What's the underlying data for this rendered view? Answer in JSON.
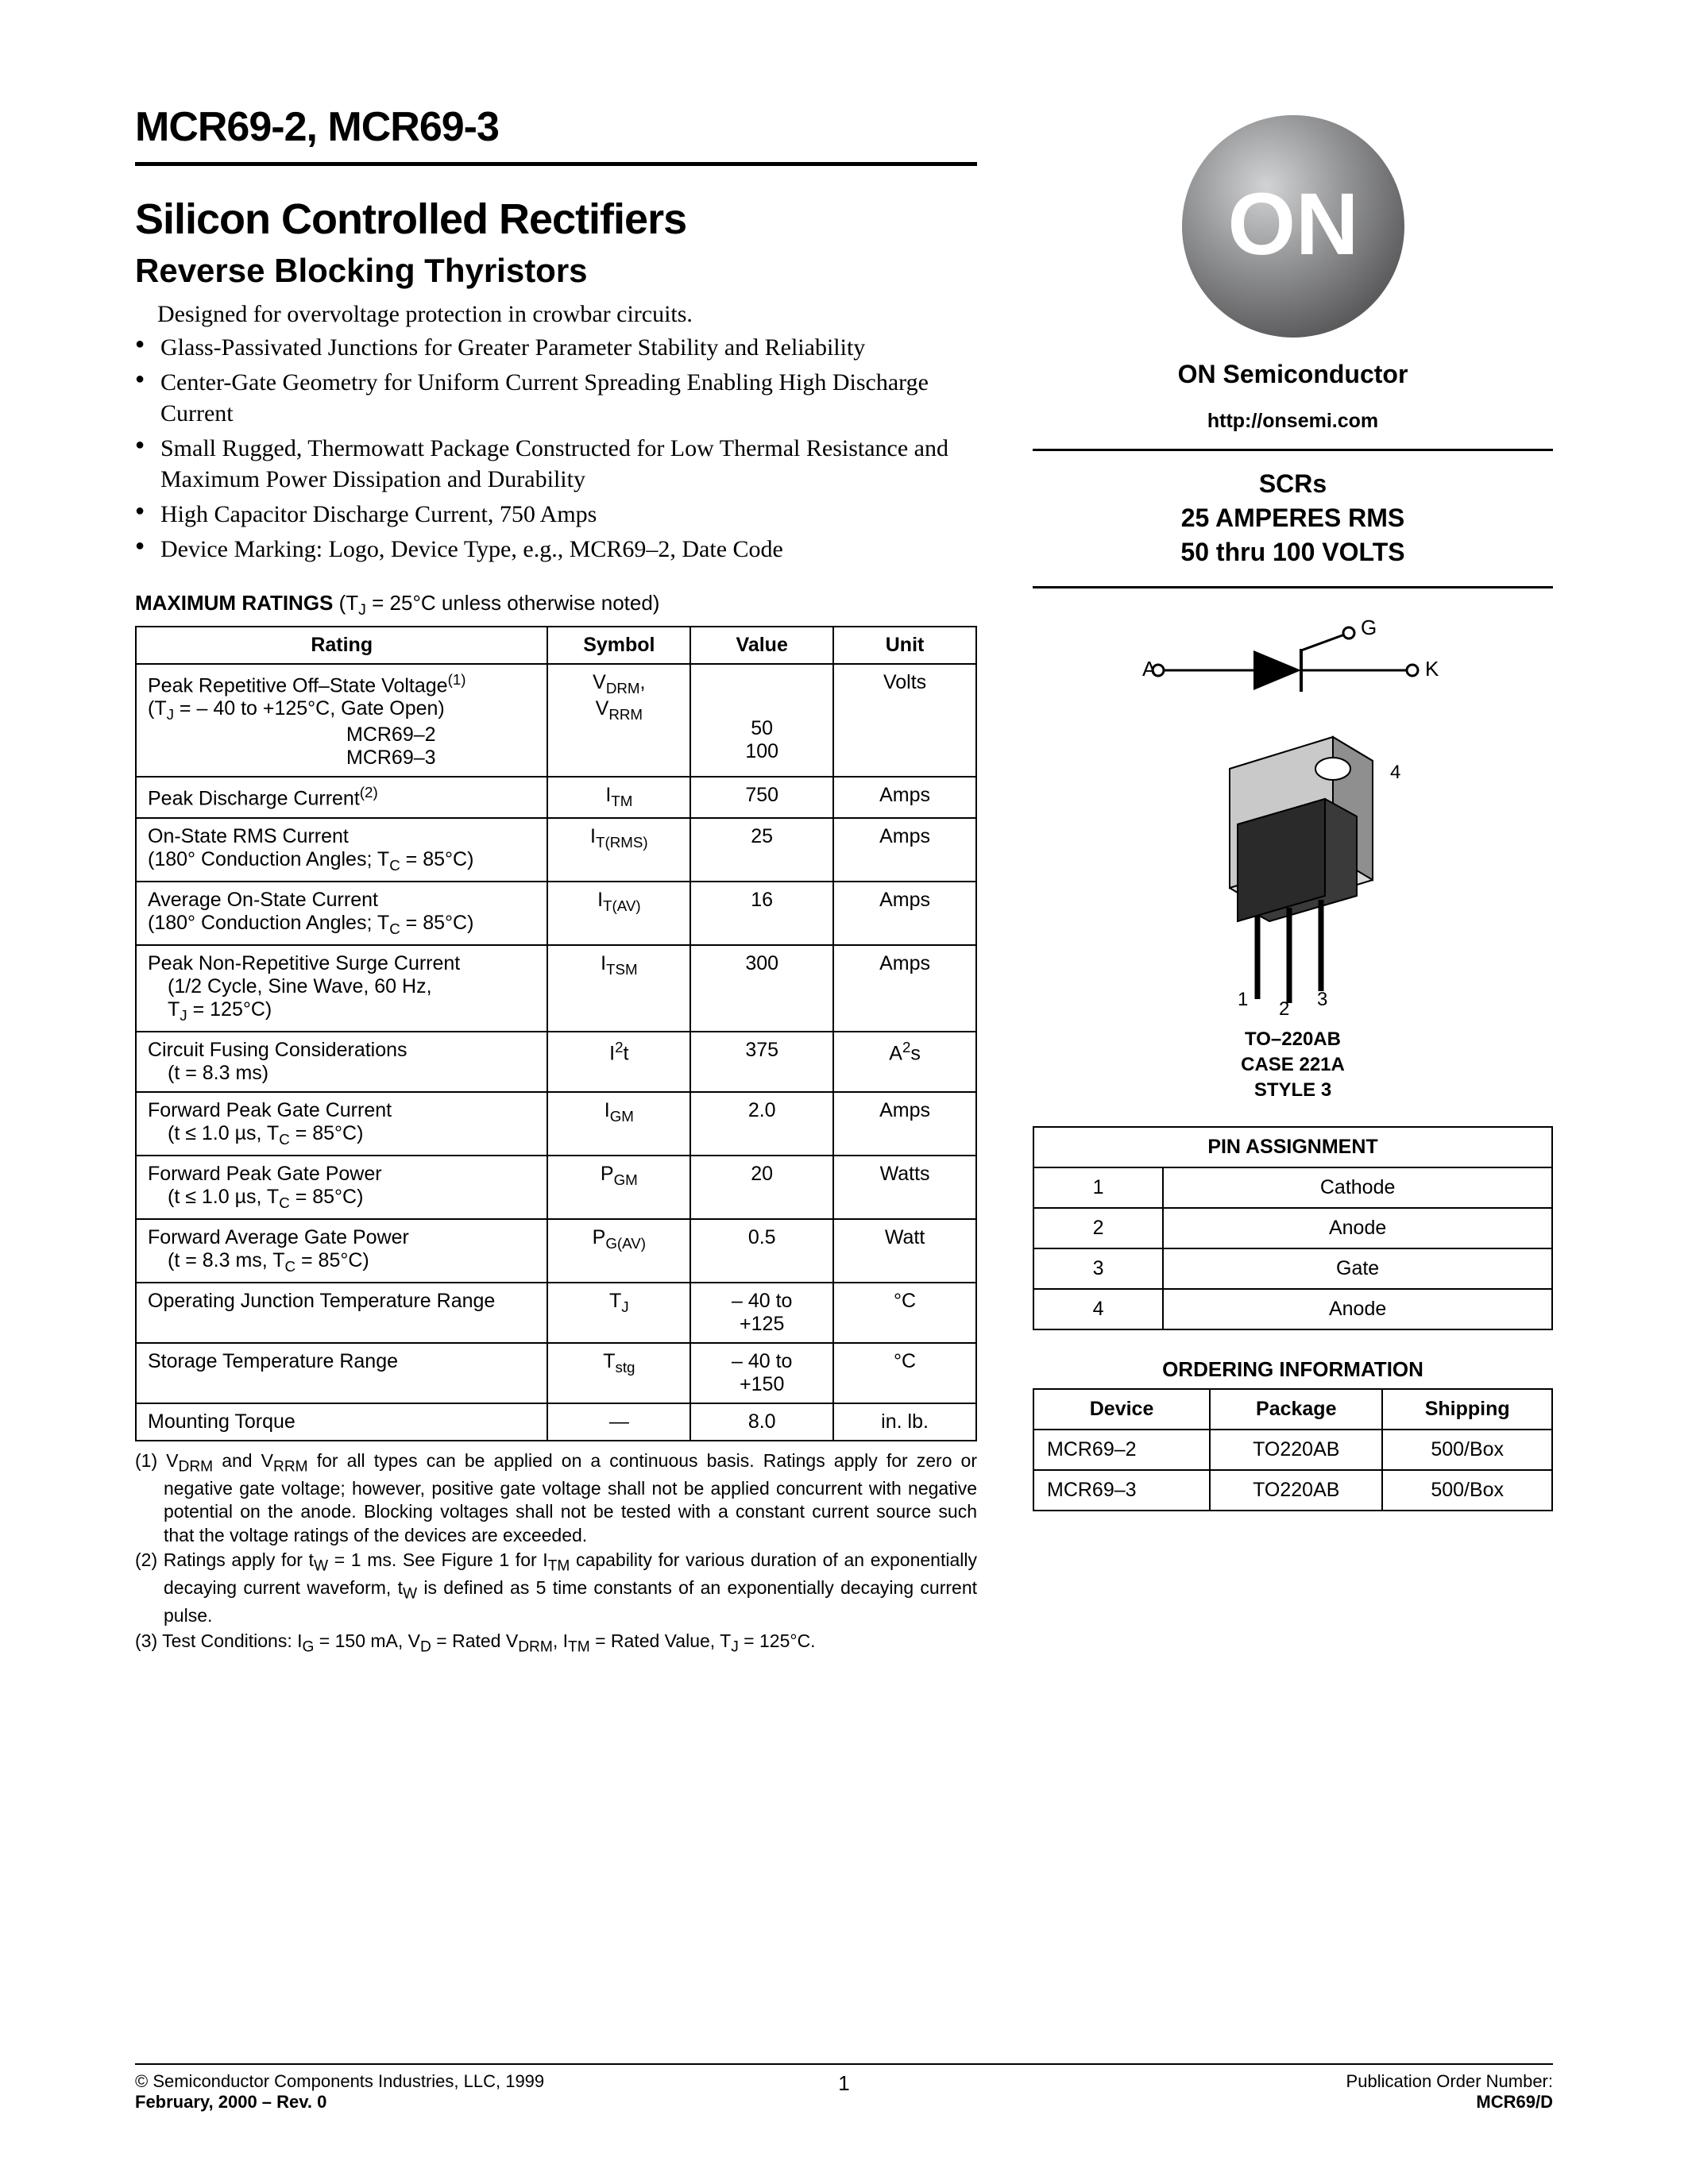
{
  "header": {
    "part_numbers": "MCR69-2, MCR69-3",
    "title": "Silicon Controlled Rectifiers",
    "subtitle": "Reverse Blocking Thyristors",
    "intro": "Designed for overvoltage protection in crowbar circuits.",
    "features": [
      "Glass-Passivated Junctions for Greater Parameter Stability and Reliability",
      "Center-Gate Geometry for Uniform Current Spreading Enabling High Discharge Current",
      "Small Rugged, Thermowatt Package Constructed for Low Thermal Resistance and Maximum Power Dissipation and Durability",
      "High Capacitor Discharge Current, 750 Amps",
      "Device Marking: Logo, Device Type, e.g., MCR69–2, Date Code"
    ]
  },
  "ratings": {
    "title": "MAXIMUM RATINGS",
    "condition": "(TJ = 25°C unless otherwise noted)",
    "columns": [
      "Rating",
      "Symbol",
      "Value",
      "Unit"
    ],
    "rows": [
      {
        "rating_html": "Peak Repetitive Off–State Voltage<span class='sup'>(1)</span><br>(T<span class='sub'>J</span> = – 40 to +125°C, Gate Open)<br>&emsp;&emsp;&emsp;&emsp;&emsp;&emsp;&emsp;&emsp;&emsp;&emsp;MCR69–2<br>&emsp;&emsp;&emsp;&emsp;&emsp;&emsp;&emsp;&emsp;&emsp;&emsp;MCR69–3",
        "symbol_html": "V<span class='sub'>DRM</span>,<br>V<span class='sub'>RRM</span>",
        "value_html": "<br><br>50<br>100",
        "unit": "Volts"
      },
      {
        "rating_html": "Peak Discharge Current<span class='sup'>(2)</span>",
        "symbol_html": "I<span class='sub'>TM</span>",
        "value_html": "750",
        "unit": "Amps"
      },
      {
        "rating_html": "On-State RMS Current<br>(180° Conduction Angles; T<span class='sub'>C</span> = 85°C)",
        "symbol_html": "I<span class='sub'>T(RMS)</span>",
        "value_html": "25",
        "unit": "Amps"
      },
      {
        "rating_html": "Average On-State Current<br>(180° Conduction Angles; T<span class='sub'>C</span> = 85°C)",
        "symbol_html": "I<span class='sub'>T(AV)</span>",
        "value_html": "16",
        "unit": "Amps"
      },
      {
        "rating_html": "Peak Non-Repetitive Surge Current<br>&emsp;(1/2 Cycle, Sine Wave, 60 Hz,<br>&emsp;T<span class='sub'>J</span> = 125°C)",
        "symbol_html": "I<span class='sub'>TSM</span>",
        "value_html": "300",
        "unit": "Amps"
      },
      {
        "rating_html": "Circuit Fusing Considerations<br>&emsp;(t = 8.3 ms)",
        "symbol_html": "I<span class='sup'>2</span>t",
        "value_html": "375",
        "unit_html": "A<span class='sup'>2</span>s"
      },
      {
        "rating_html": "Forward Peak Gate Current<br>&emsp;(t ≤ 1.0 µs, T<span class='sub'>C</span> = 85°C)",
        "symbol_html": "I<span class='sub'>GM</span>",
        "value_html": "2.0",
        "unit": "Amps"
      },
      {
        "rating_html": "Forward Peak Gate Power<br>&emsp;(t ≤ 1.0 µs, T<span class='sub'>C</span> = 85°C)",
        "symbol_html": "P<span class='sub'>GM</span>",
        "value_html": "20",
        "unit": "Watts"
      },
      {
        "rating_html": "Forward Average Gate Power<br>&emsp;(t = 8.3 ms, T<span class='sub'>C</span> = 85°C)",
        "symbol_html": "P<span class='sub'>G(AV)</span>",
        "value_html": "0.5",
        "unit": "Watt"
      },
      {
        "rating_html": "Operating Junction Temperature Range",
        "symbol_html": "T<span class='sub'>J</span>",
        "value_html": "– 40 to<br>+125",
        "unit": "°C"
      },
      {
        "rating_html": "Storage Temperature Range",
        "symbol_html": "T<span class='sub'>stg</span>",
        "value_html": "– 40 to<br>+150",
        "unit": "°C"
      },
      {
        "rating_html": "Mounting Torque",
        "symbol_html": "—",
        "value_html": "8.0",
        "unit": "in. lb."
      }
    ]
  },
  "footnotes": [
    "(1) V<sub>DRM</sub> and V<sub>RRM</sub> for all types can be applied on a continuous basis. Ratings apply for zero or negative gate voltage; however, positive gate voltage shall not be applied concurrent with negative potential on the anode. Blocking voltages shall not be tested with a constant current source such that the voltage ratings of the devices are exceeded.",
    "(2) Ratings apply for t<sub>W</sub> = 1 ms. See Figure 1 for I<sub>TM</sub> capability for various duration of an exponentially decaying current waveform, t<sub>W</sub> is defined as 5 time constants of an exponentially decaying current pulse.",
    "(3) Test Conditions: I<sub>G</sub> = 150 mA, V<sub>D</sub> = Rated V<sub>DRM</sub>, I<sub>TM</sub> = Rated Value, T<sub>J</sub> = 125°C."
  ],
  "right": {
    "logo_text": "ON",
    "brand": "ON Semiconductor",
    "url": "http://onsemi.com",
    "product_lines": [
      "SCRs",
      "25 AMPERES RMS",
      "50 thru 100 VOLTS"
    ],
    "symbol": {
      "A": "A",
      "G": "G",
      "K": "K"
    },
    "package": {
      "pins": [
        "1",
        "2",
        "3",
        "4"
      ],
      "caption": [
        "TO–220AB",
        "CASE 221A",
        "STYLE 3"
      ]
    },
    "pin_title": "PIN ASSIGNMENT",
    "pins": [
      {
        "n": "1",
        "name": "Cathode"
      },
      {
        "n": "2",
        "name": "Anode"
      },
      {
        "n": "3",
        "name": "Gate"
      },
      {
        "n": "4",
        "name": "Anode"
      }
    ],
    "order_title": "ORDERING INFORMATION",
    "order_columns": [
      "Device",
      "Package",
      "Shipping"
    ],
    "order_rows": [
      {
        "device": "MCR69–2",
        "package": "TO220AB",
        "shipping": "500/Box"
      },
      {
        "device": "MCR69–3",
        "package": "TO220AB",
        "shipping": "500/Box"
      }
    ]
  },
  "footer": {
    "copyright": "©   Semiconductor Components Industries, LLC, 1999",
    "date": "February, 2000 – Rev. 0",
    "page": "1",
    "pub_label": "Publication Order Number:",
    "pub_number": "MCR69/D"
  },
  "colors": {
    "logo_sphere": "#999a9c",
    "logo_shadow": "#6f6f71",
    "logo_highlight": "#c8c9cb"
  }
}
